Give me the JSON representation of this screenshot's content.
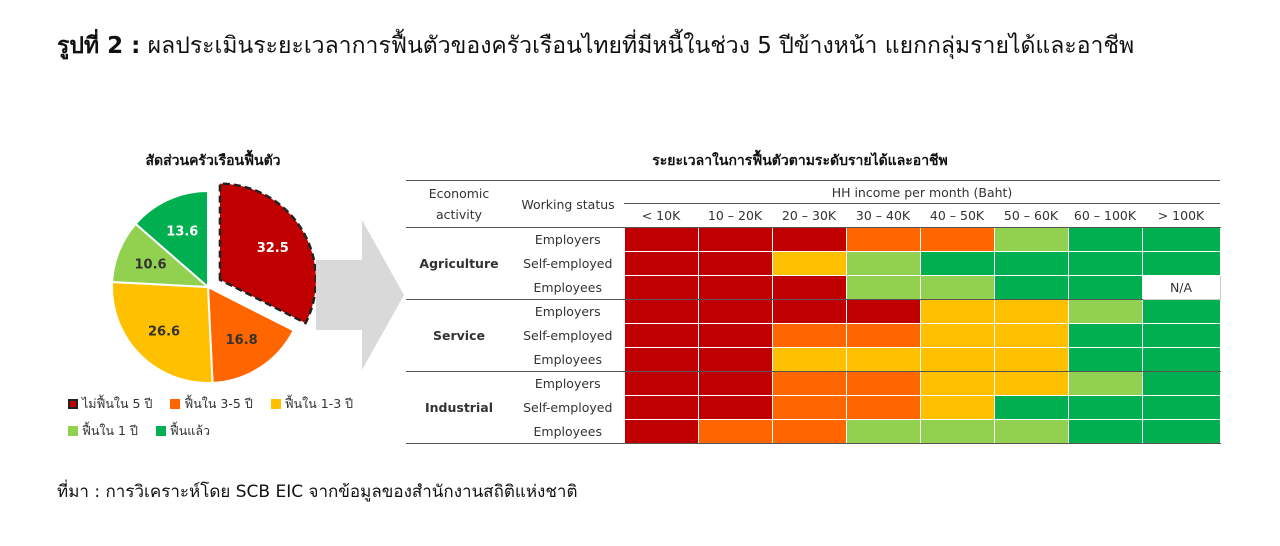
{
  "figure": {
    "title_lead": "รูปที่ 2 :",
    "title_rest": " ผลประเมินระยะเวลาการฟื้นตัวของครัวเรือนไทยที่มีหนี้ในช่วง 5 ปีข้างหน้า แยกกลุ่มรายได้และอาชีพ",
    "source": "ที่มา : การวิเคราะห์โดย SCB EIC จากข้อมูลของสำนักงานสถิติแห่งชาติ"
  },
  "colors": {
    "not_5y": "#c00000",
    "y3_5": "#ff6600",
    "y1_3": "#ffc000",
    "y1": "#92d050",
    "recovered": "#00b050",
    "arrow": "#d9d9d9"
  },
  "chart_data": [
    {
      "type": "pie",
      "title": "สัดส่วนครัวเรือนฟื้นตัว",
      "slices": [
        {
          "label": "ไม่ฟื้นใน 5 ปี",
          "value": 32.5,
          "color": "#c00000",
          "exploded": true
        },
        {
          "label": "ฟื้นใน 3-5 ปี",
          "value": 16.8,
          "color": "#ff6600"
        },
        {
          "label": "ฟื้นใน 1-3 ปี",
          "value": 26.6,
          "color": "#ffc000"
        },
        {
          "label": "ฟื้นใน 1 ปี",
          "value": 10.6,
          "color": "#92d050"
        },
        {
          "label": "ฟื้นแล้ว",
          "value": 13.6,
          "color": "#00b050"
        }
      ],
      "legend_position": "bottom"
    },
    {
      "type": "heatmap",
      "title": "ระยะเวลาในการฟื้นตัวตามระดับรายได้และอาชีพ",
      "header_activity": [
        "Economic",
        "activity"
      ],
      "header_status": "Working status",
      "header_income": "HH income per month (Baht)",
      "columns": [
        "< 10K",
        "10 – 20K",
        "20 – 30K",
        "30 – 40K",
        "40 – 50K",
        "50 – 60K",
        "60 – 100K",
        "> 100K"
      ],
      "groups": [
        {
          "activity": "Agriculture",
          "rows": [
            {
              "status": "Employers",
              "cells": [
                "not_5y",
                "not_5y",
                "not_5y",
                "y3_5",
                "y3_5",
                "y1",
                "recovered",
                "recovered"
              ]
            },
            {
              "status": "Self-employed",
              "cells": [
                "not_5y",
                "not_5y",
                "y1_3",
                "y1",
                "recovered",
                "recovered",
                "recovered",
                "recovered"
              ]
            },
            {
              "status": "Employees",
              "cells": [
                "not_5y",
                "not_5y",
                "not_5y",
                "y1",
                "y1",
                "recovered",
                "recovered",
                "N/A"
              ]
            }
          ]
        },
        {
          "activity": "Service",
          "rows": [
            {
              "status": "Employers",
              "cells": [
                "not_5y",
                "not_5y",
                "not_5y",
                "not_5y",
                "y1_3",
                "y1_3",
                "y1",
                "recovered"
              ]
            },
            {
              "status": "Self-employed",
              "cells": [
                "not_5y",
                "not_5y",
                "y3_5",
                "y3_5",
                "y1_3",
                "y1_3",
                "recovered",
                "recovered"
              ]
            },
            {
              "status": "Employees",
              "cells": [
                "not_5y",
                "not_5y",
                "y1_3",
                "y1_3",
                "y1_3",
                "y1_3",
                "recovered",
                "recovered"
              ]
            }
          ]
        },
        {
          "activity": "Industrial",
          "rows": [
            {
              "status": "Employers",
              "cells": [
                "not_5y",
                "not_5y",
                "y3_5",
                "y3_5",
                "y1_3",
                "y1_3",
                "y1",
                "recovered"
              ]
            },
            {
              "status": "Self-employed",
              "cells": [
                "not_5y",
                "not_5y",
                "y3_5",
                "y3_5",
                "y1_3",
                "recovered",
                "recovered",
                "recovered"
              ]
            },
            {
              "status": "Employees",
              "cells": [
                "not_5y",
                "y3_5",
                "y3_5",
                "y1",
                "y1",
                "y1",
                "recovered",
                "recovered"
              ]
            }
          ]
        }
      ]
    }
  ]
}
